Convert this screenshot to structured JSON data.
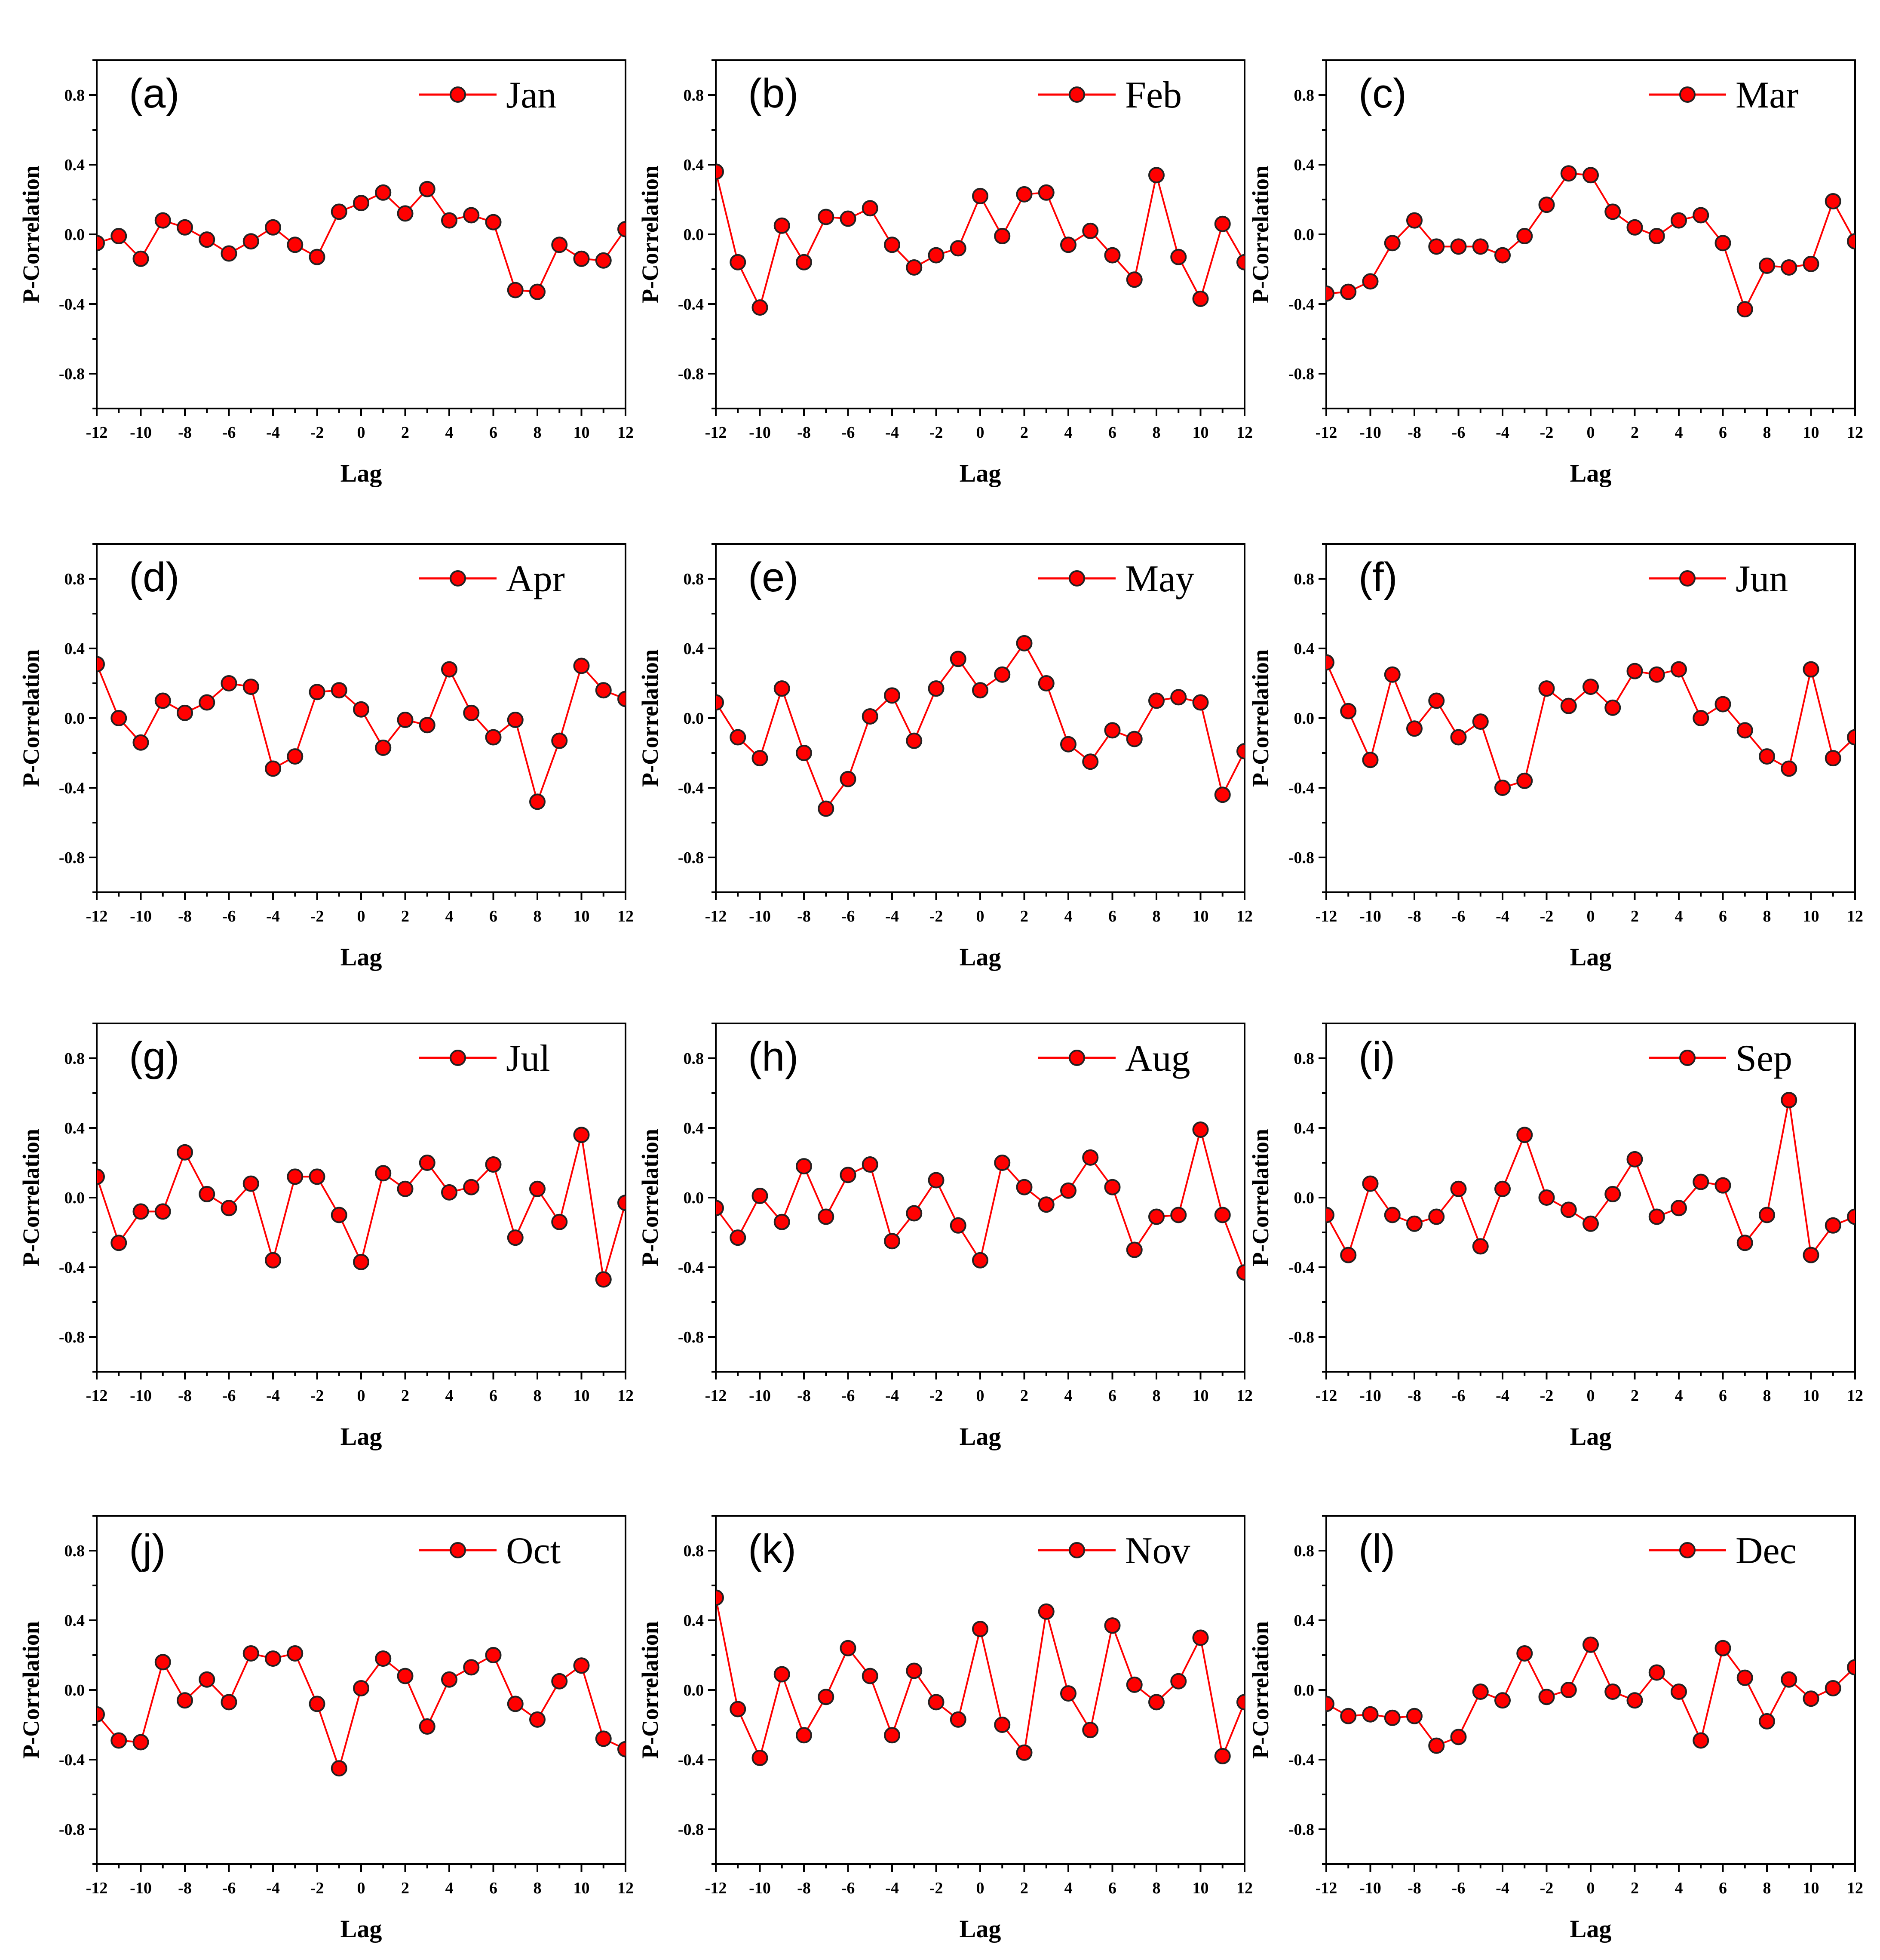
{
  "figure": {
    "line_color": "#ff0000",
    "marker_color": "#ff0000",
    "marker_edge_color": "#222222",
    "axis_color": "#000000"
  },
  "chart_data": [
    {
      "type": "line",
      "panel_label": "(a)",
      "legend": "Jan",
      "xlabel": "Lag",
      "ylabel": "P-Correlation",
      "x": [
        -12,
        -11,
        -10,
        -9,
        -8,
        -7,
        -6,
        -5,
        -4,
        -3,
        -2,
        -1,
        0,
        1,
        2,
        3,
        4,
        5,
        6,
        7,
        8,
        9,
        10,
        11,
        12
      ],
      "values": [
        -0.05,
        -0.01,
        -0.14,
        0.08,
        0.04,
        -0.03,
        -0.11,
        -0.04,
        0.04,
        -0.06,
        -0.13,
        0.13,
        0.18,
        0.24,
        0.12,
        0.26,
        0.08,
        0.11,
        0.07,
        -0.32,
        -0.33,
        -0.06,
        -0.14,
        -0.15,
        0.03
      ],
      "xlim": [
        -12,
        12
      ],
      "ylim": [
        -1.0,
        1.0
      ],
      "xticks": [
        "-12",
        "-10",
        "-8",
        "-6",
        "-4",
        "-2",
        "0",
        "2",
        "4",
        "6",
        "8",
        "10",
        "12"
      ],
      "yticks": [
        "0.8",
        "0.4",
        "0.0",
        "-0.4",
        "-0.8"
      ]
    },
    {
      "type": "line",
      "panel_label": "(b)",
      "legend": "Feb",
      "xlabel": "Lag",
      "ylabel": "P-Correlation",
      "x": [
        -12,
        -11,
        -10,
        -9,
        -8,
        -7,
        -6,
        -5,
        -4,
        -3,
        -2,
        -1,
        0,
        1,
        2,
        3,
        4,
        5,
        6,
        7,
        8,
        9,
        10,
        11,
        12
      ],
      "values": [
        0.36,
        -0.16,
        -0.42,
        0.05,
        -0.16,
        0.1,
        0.09,
        0.15,
        -0.06,
        -0.19,
        -0.12,
        -0.08,
        0.22,
        -0.01,
        0.23,
        0.24,
        -0.06,
        0.02,
        -0.12,
        -0.26,
        0.34,
        -0.13,
        -0.37,
        0.06,
        -0.16
      ],
      "xlim": [
        -12,
        12
      ],
      "ylim": [
        -1.0,
        1.0
      ],
      "xticks": [
        "-12",
        "-10",
        "-8",
        "-6",
        "-4",
        "-2",
        "0",
        "2",
        "4",
        "6",
        "8",
        "10",
        "12"
      ],
      "yticks": [
        "0.8",
        "0.4",
        "0.0",
        "-0.4",
        "-0.8"
      ]
    },
    {
      "type": "line",
      "panel_label": "(c)",
      "legend": "Mar",
      "xlabel": "Lag",
      "ylabel": "P-Correlation",
      "x": [
        -12,
        -11,
        -10,
        -9,
        -8,
        -7,
        -6,
        -5,
        -4,
        -3,
        -2,
        -1,
        0,
        1,
        2,
        3,
        4,
        5,
        6,
        7,
        8,
        9,
        10,
        11,
        12
      ],
      "values": [
        -0.34,
        -0.33,
        -0.27,
        -0.05,
        0.08,
        -0.07,
        -0.07,
        -0.07,
        -0.12,
        -0.01,
        0.17,
        0.35,
        0.34,
        0.13,
        0.04,
        -0.01,
        0.08,
        0.11,
        -0.05,
        -0.43,
        -0.18,
        -0.19,
        -0.17,
        0.19,
        -0.04
      ],
      "xlim": [
        -12,
        12
      ],
      "ylim": [
        -1.0,
        1.0
      ],
      "xticks": [
        "-12",
        "-10",
        "-8",
        "-6",
        "-4",
        "-2",
        "0",
        "2",
        "4",
        "6",
        "8",
        "10",
        "12"
      ],
      "yticks": [
        "0.8",
        "0.4",
        "0.0",
        "-0.4",
        "-0.8"
      ]
    },
    {
      "type": "line",
      "panel_label": "(d)",
      "legend": "Apr",
      "xlabel": "Lag",
      "ylabel": "P-Correlation",
      "x": [
        -12,
        -11,
        -10,
        -9,
        -8,
        -7,
        -6,
        -5,
        -4,
        -3,
        -2,
        -1,
        0,
        1,
        2,
        3,
        4,
        5,
        6,
        7,
        8,
        9,
        10,
        11,
        12
      ],
      "values": [
        0.31,
        0.0,
        -0.14,
        0.1,
        0.03,
        0.09,
        0.2,
        0.18,
        -0.29,
        -0.22,
        0.15,
        0.16,
        0.05,
        -0.17,
        -0.01,
        -0.04,
        0.28,
        0.03,
        -0.11,
        -0.01,
        -0.48,
        -0.13,
        0.3,
        0.16,
        0.11
      ],
      "xlim": [
        -12,
        12
      ],
      "ylim": [
        -1.0,
        1.0
      ],
      "xticks": [
        "-12",
        "-10",
        "-8",
        "-6",
        "-4",
        "-2",
        "0",
        "2",
        "4",
        "6",
        "8",
        "10",
        "12"
      ],
      "yticks": [
        "0.8",
        "0.4",
        "0.0",
        "-0.4",
        "-0.8"
      ]
    },
    {
      "type": "line",
      "panel_label": "(e)",
      "legend": "May",
      "xlabel": "Lag",
      "ylabel": "P-Correlation",
      "x": [
        -12,
        -11,
        -10,
        -9,
        -8,
        -7,
        -6,
        -5,
        -4,
        -3,
        -2,
        -1,
        0,
        1,
        2,
        3,
        4,
        5,
        6,
        7,
        8,
        9,
        10,
        11,
        12
      ],
      "values": [
        0.09,
        -0.11,
        -0.23,
        0.17,
        -0.2,
        -0.52,
        -0.35,
        0.01,
        0.13,
        -0.13,
        0.17,
        0.34,
        0.16,
        0.25,
        0.43,
        0.2,
        -0.15,
        -0.25,
        -0.07,
        -0.12,
        0.1,
        0.12,
        0.09,
        -0.44,
        -0.19
      ],
      "xlim": [
        -12,
        12
      ],
      "ylim": [
        -1.0,
        1.0
      ],
      "xticks": [
        "-12",
        "-10",
        "-8",
        "-6",
        "-4",
        "-2",
        "0",
        "2",
        "4",
        "6",
        "8",
        "10",
        "12"
      ],
      "yticks": [
        "0.8",
        "0.4",
        "0.0",
        "-0.4",
        "-0.8"
      ]
    },
    {
      "type": "line",
      "panel_label": "(f)",
      "legend": "Jun",
      "xlabel": "Lag",
      "ylabel": "P-Correlation",
      "x": [
        -12,
        -11,
        -10,
        -9,
        -8,
        -7,
        -6,
        -5,
        -4,
        -3,
        -2,
        -1,
        0,
        1,
        2,
        3,
        4,
        5,
        6,
        7,
        8,
        9,
        10,
        11,
        12
      ],
      "values": [
        0.32,
        0.04,
        -0.24,
        0.25,
        -0.06,
        0.1,
        -0.11,
        -0.02,
        -0.4,
        -0.36,
        0.17,
        0.07,
        0.18,
        0.06,
        0.27,
        0.25,
        0.28,
        0.0,
        0.08,
        -0.07,
        -0.22,
        -0.29,
        0.28,
        -0.23,
        -0.11
      ],
      "xlim": [
        -12,
        12
      ],
      "ylim": [
        -1.0,
        1.0
      ],
      "xticks": [
        "-12",
        "-10",
        "-8",
        "-6",
        "-4",
        "-2",
        "0",
        "2",
        "4",
        "6",
        "8",
        "10",
        "12"
      ],
      "yticks": [
        "0.8",
        "0.4",
        "0.0",
        "-0.4",
        "-0.8"
      ]
    },
    {
      "type": "line",
      "panel_label": "(g)",
      "legend": "Jul",
      "xlabel": "Lag",
      "ylabel": "P-Correlation",
      "x": [
        -12,
        -11,
        -10,
        -9,
        -8,
        -7,
        -6,
        -5,
        -4,
        -3,
        -2,
        -1,
        0,
        1,
        2,
        3,
        4,
        5,
        6,
        7,
        8,
        9,
        10,
        11,
        12
      ],
      "values": [
        0.12,
        -0.26,
        -0.08,
        -0.08,
        0.26,
        0.02,
        -0.06,
        0.08,
        -0.36,
        0.12,
        0.12,
        -0.1,
        -0.37,
        0.14,
        0.05,
        0.2,
        0.03,
        0.06,
        0.19,
        -0.23,
        0.05,
        -0.14,
        0.36,
        -0.47,
        -0.03
      ],
      "xlim": [
        -12,
        12
      ],
      "ylim": [
        -1.0,
        1.0
      ],
      "xticks": [
        "-12",
        "-10",
        "-8",
        "-6",
        "-4",
        "-2",
        "0",
        "2",
        "4",
        "6",
        "8",
        "10",
        "12"
      ],
      "yticks": [
        "0.8",
        "0.4",
        "0.0",
        "-0.4",
        "-0.8"
      ]
    },
    {
      "type": "line",
      "panel_label": "(h)",
      "legend": "Aug",
      "xlabel": "Lag",
      "ylabel": "P-Correlation",
      "x": [
        -12,
        -11,
        -10,
        -9,
        -8,
        -7,
        -6,
        -5,
        -4,
        -3,
        -2,
        -1,
        0,
        1,
        2,
        3,
        4,
        5,
        6,
        7,
        8,
        9,
        10,
        11,
        12
      ],
      "values": [
        -0.06,
        -0.23,
        0.01,
        -0.14,
        0.18,
        -0.11,
        0.13,
        0.19,
        -0.25,
        -0.09,
        0.1,
        -0.16,
        -0.36,
        0.2,
        0.06,
        -0.04,
        0.04,
        0.23,
        0.06,
        -0.3,
        -0.11,
        -0.1,
        0.39,
        -0.1,
        -0.43
      ],
      "xlim": [
        -12,
        12
      ],
      "ylim": [
        -1.0,
        1.0
      ],
      "xticks": [
        "-12",
        "-10",
        "-8",
        "-6",
        "-4",
        "-2",
        "0",
        "2",
        "4",
        "6",
        "8",
        "10",
        "12"
      ],
      "yticks": [
        "0.8",
        "0.4",
        "0.0",
        "-0.4",
        "-0.8"
      ]
    },
    {
      "type": "line",
      "panel_label": "(i)",
      "legend": "Sep",
      "xlabel": "Lag",
      "ylabel": "P-Correlation",
      "x": [
        -12,
        -11,
        -10,
        -9,
        -8,
        -7,
        -6,
        -5,
        -4,
        -3,
        -2,
        -1,
        0,
        1,
        2,
        3,
        4,
        5,
        6,
        7,
        8,
        9,
        10,
        11,
        12
      ],
      "values": [
        -0.1,
        -0.33,
        0.08,
        -0.1,
        -0.15,
        -0.11,
        0.05,
        -0.28,
        0.05,
        0.36,
        0.0,
        -0.07,
        -0.15,
        0.02,
        0.22,
        -0.11,
        -0.06,
        0.09,
        0.07,
        -0.26,
        -0.1,
        0.56,
        -0.33,
        -0.16,
        -0.11
      ],
      "xlim": [
        -12,
        12
      ],
      "ylim": [
        -1.0,
        1.0
      ],
      "xticks": [
        "-12",
        "-10",
        "-8",
        "-6",
        "-4",
        "-2",
        "0",
        "2",
        "4",
        "6",
        "8",
        "10",
        "12"
      ],
      "yticks": [
        "0.8",
        "0.4",
        "0.0",
        "-0.4",
        "-0.8"
      ]
    },
    {
      "type": "line",
      "panel_label": "(j)",
      "legend": "Oct",
      "xlabel": "Lag",
      "ylabel": "P-Correlation",
      "x": [
        -12,
        -11,
        -10,
        -9,
        -8,
        -7,
        -6,
        -5,
        -4,
        -3,
        -2,
        -1,
        0,
        1,
        2,
        3,
        4,
        5,
        6,
        7,
        8,
        9,
        10,
        11,
        12
      ],
      "values": [
        -0.14,
        -0.29,
        -0.3,
        0.16,
        -0.06,
        0.06,
        -0.07,
        0.21,
        0.18,
        0.21,
        -0.08,
        -0.45,
        0.01,
        0.18,
        0.08,
        -0.21,
        0.06,
        0.13,
        0.2,
        -0.08,
        -0.17,
        0.05,
        0.14,
        -0.28,
        -0.34
      ],
      "xlim": [
        -12,
        12
      ],
      "ylim": [
        -1.0,
        1.0
      ],
      "xticks": [
        "-12",
        "-10",
        "-8",
        "-6",
        "-4",
        "-2",
        "0",
        "2",
        "4",
        "6",
        "8",
        "10",
        "12"
      ],
      "yticks": [
        "0.8",
        "0.4",
        "0.0",
        "-0.4",
        "-0.8"
      ]
    },
    {
      "type": "line",
      "panel_label": "(k)",
      "legend": "Nov",
      "xlabel": "Lag",
      "ylabel": "P-Correlation",
      "x": [
        -12,
        -11,
        -10,
        -9,
        -8,
        -7,
        -6,
        -5,
        -4,
        -3,
        -2,
        -1,
        0,
        1,
        2,
        3,
        4,
        5,
        6,
        7,
        8,
        9,
        10,
        11,
        12
      ],
      "values": [
        0.53,
        -0.11,
        -0.39,
        0.09,
        -0.26,
        -0.04,
        0.24,
        0.08,
        -0.26,
        0.11,
        -0.07,
        -0.17,
        0.35,
        -0.2,
        -0.36,
        0.45,
        -0.02,
        -0.23,
        0.37,
        0.03,
        -0.07,
        0.05,
        0.3,
        -0.38,
        -0.07
      ],
      "xlim": [
        -12,
        12
      ],
      "ylim": [
        -1.0,
        1.0
      ],
      "xticks": [
        "-12",
        "-10",
        "-8",
        "-6",
        "-4",
        "-2",
        "0",
        "2",
        "4",
        "6",
        "8",
        "10",
        "12"
      ],
      "yticks": [
        "0.8",
        "0.4",
        "0.0",
        "-0.4",
        "-0.8"
      ]
    },
    {
      "type": "line",
      "panel_label": "(l)",
      "legend": "Dec",
      "xlabel": "Lag",
      "ylabel": "P-Correlation",
      "x": [
        -12,
        -11,
        -10,
        -9,
        -8,
        -7,
        -6,
        -5,
        -4,
        -3,
        -2,
        -1,
        0,
        1,
        2,
        3,
        4,
        5,
        6,
        7,
        8,
        9,
        10,
        11,
        12
      ],
      "values": [
        -0.08,
        -0.15,
        -0.14,
        -0.16,
        -0.15,
        -0.32,
        -0.27,
        -0.01,
        -0.06,
        0.21,
        -0.04,
        0.0,
        0.26,
        -0.01,
        -0.06,
        0.1,
        -0.01,
        -0.29,
        0.24,
        0.07,
        -0.18,
        0.06,
        -0.05,
        0.01,
        0.13
      ],
      "xlim": [
        -12,
        12
      ],
      "ylim": [
        -1.0,
        1.0
      ],
      "xticks": [
        "-12",
        "-10",
        "-8",
        "-6",
        "-4",
        "-2",
        "0",
        "2",
        "4",
        "6",
        "8",
        "10",
        "12"
      ],
      "yticks": [
        "0.8",
        "0.4",
        "0.0",
        "-0.4",
        "-0.8"
      ]
    }
  ]
}
